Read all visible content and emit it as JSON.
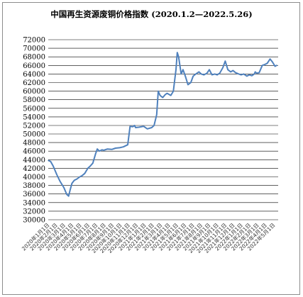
{
  "chart_data": {
    "type": "line",
    "title": "中国再生资源废铜价格指数 (2020.1.2—2022.5.26)",
    "xlabel": "",
    "ylabel": "",
    "ylim": [
      30000,
      72000
    ],
    "ytick_step": 2000,
    "grid": true,
    "legend": "none",
    "x_ticks": [
      "2020年1月1日",
      "2020年2月1日",
      "2020年3月1日",
      "2020年4月1日",
      "2020年5月1日",
      "2020年6月1日",
      "2020年7月1日",
      "2020年8月1日",
      "2020年9月1日",
      "2020年10月1日",
      "2020年11月1日",
      "2020年12月1日",
      "2021年1月1日",
      "2021年2月1日",
      "2021年3月1日",
      "2021年4月1日",
      "2021年5月1日",
      "2021年6月1日",
      "2021年7月1日",
      "2021年8月1日",
      "2021年9月1日",
      "2021年10月1日",
      "2021年11月1日",
      "2021年12月1日",
      "2022年1月1日",
      "2022年2月1日",
      "2022年3月1日",
      "2022年4月1日",
      "2022年5月1日"
    ],
    "series": [
      {
        "color": "#4f81bd",
        "x": [
          "2020-01-02",
          "2020-01-10",
          "2020-01-20",
          "2020-02-03",
          "2020-02-15",
          "2020-03-01",
          "2020-03-12",
          "2020-03-19",
          "2020-03-25",
          "2020-04-01",
          "2020-04-10",
          "2020-04-20",
          "2020-05-01",
          "2020-05-10",
          "2020-05-20",
          "2020-06-01",
          "2020-06-10",
          "2020-06-20",
          "2020-07-01",
          "2020-07-07",
          "2020-07-15",
          "2020-07-25",
          "2020-08-01",
          "2020-08-15",
          "2020-09-01",
          "2020-09-15",
          "2020-10-01",
          "2020-10-15",
          "2020-11-01",
          "2020-11-10",
          "2020-11-20",
          "2020-11-27",
          "2020-12-01",
          "2020-12-15",
          "2021-01-01",
          "2021-01-15",
          "2021-02-01",
          "2021-02-10",
          "2021-02-20",
          "2021-02-26",
          "2021-03-05",
          "2021-03-15",
          "2021-03-25",
          "2021-04-01",
          "2021-04-15",
          "2021-04-25",
          "2021-05-01",
          "2021-05-05",
          "2021-05-10",
          "2021-05-15",
          "2021-05-20",
          "2021-05-25",
          "2021-06-01",
          "2021-06-10",
          "2021-06-20",
          "2021-07-01",
          "2021-07-10",
          "2021-07-20",
          "2021-08-01",
          "2021-08-10",
          "2021-08-20",
          "2021-09-01",
          "2021-09-10",
          "2021-09-20",
          "2021-10-01",
          "2021-10-10",
          "2021-10-20",
          "2021-11-01",
          "2021-11-10",
          "2021-11-20",
          "2021-12-01",
          "2021-12-10",
          "2021-12-20",
          "2022-01-01",
          "2022-01-10",
          "2022-01-20",
          "2022-02-01",
          "2022-02-10",
          "2022-02-20",
          "2022-03-01",
          "2022-03-05",
          "2022-03-10",
          "2022-03-20",
          "2022-04-01",
          "2022-04-10",
          "2022-04-20",
          "2022-05-01",
          "2022-05-10",
          "2022-05-20",
          "2022-05-26"
        ],
        "values": [
          43800,
          43600,
          42500,
          40500,
          39000,
          37500,
          35900,
          35500,
          37000,
          38500,
          39200,
          39500,
          40000,
          40300,
          40800,
          42000,
          42500,
          43200,
          45500,
          46500,
          46000,
          46300,
          46200,
          46500,
          46400,
          46700,
          46800,
          47000,
          47500,
          51800,
          51700,
          52000,
          51500,
          51600,
          51800,
          51200,
          51500,
          52000,
          54500,
          60000,
          59000,
          58500,
          59200,
          59500,
          59000,
          60000,
          63000,
          65000,
          69000,
          68000,
          66000,
          64000,
          65000,
          63500,
          61500,
          62000,
          63500,
          64000,
          64500,
          64000,
          63800,
          64200,
          65000,
          63800,
          64000,
          63800,
          64200,
          65500,
          67000,
          65000,
          64500,
          64800,
          64300,
          64000,
          63800,
          64000,
          63500,
          63800,
          63600,
          64000,
          64500,
          64200,
          64300,
          66000,
          66200,
          66500,
          67500,
          66800,
          65800,
          66000
        ]
      }
    ]
  }
}
